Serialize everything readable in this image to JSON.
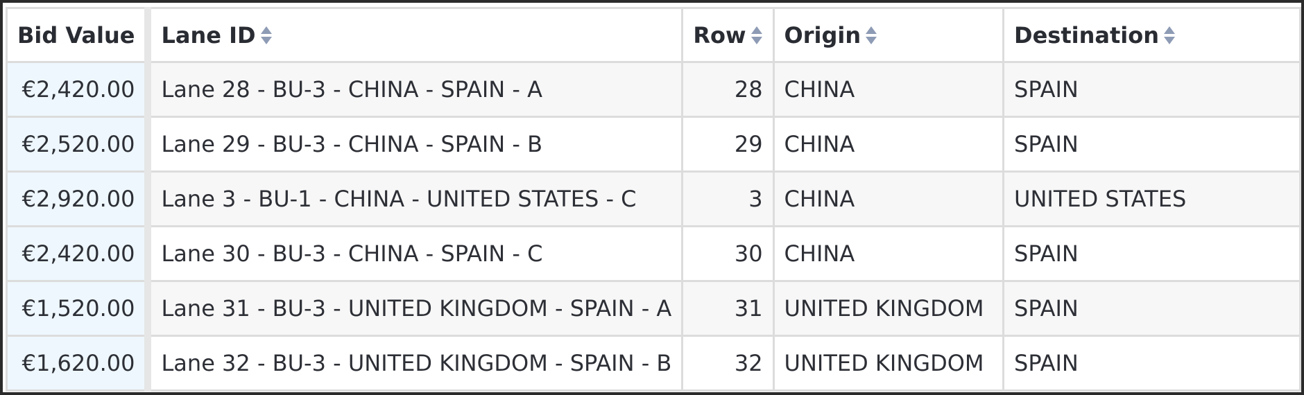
{
  "table": {
    "columns": [
      {
        "label": "Bid Value",
        "sortable": false
      },
      {
        "label": "Lane ID",
        "sortable": true
      },
      {
        "label": "Row",
        "sortable": true
      },
      {
        "label": "Origin",
        "sortable": true
      },
      {
        "label": "Destination",
        "sortable": true
      }
    ],
    "rows": [
      {
        "bid": "€2,420.00",
        "lane": "Lane 28 - BU-3 - CHINA - SPAIN - A",
        "row": "28",
        "origin": "CHINA",
        "destination": "SPAIN"
      },
      {
        "bid": "€2,520.00",
        "lane": "Lane 29 - BU-3 - CHINA - SPAIN - B",
        "row": "29",
        "origin": "CHINA",
        "destination": "SPAIN"
      },
      {
        "bid": "€2,920.00",
        "lane": "Lane 3 - BU-1 - CHINA - UNITED STATES - C",
        "row": "3",
        "origin": "CHINA",
        "destination": "UNITED STATES"
      },
      {
        "bid": "€2,420.00",
        "lane": "Lane 30 - BU-3 - CHINA - SPAIN - C",
        "row": "30",
        "origin": "CHINA",
        "destination": "SPAIN"
      },
      {
        "bid": "€1,520.00",
        "lane": "Lane 31 - BU-3 - UNITED KINGDOM - SPAIN - A",
        "row": "31",
        "origin": "UNITED KINGDOM",
        "destination": "SPAIN"
      },
      {
        "bid": "€1,620.00",
        "lane": "Lane 32 - BU-3 - UNITED KINGDOM - SPAIN - B",
        "row": "32",
        "origin": "UNITED KINGDOM",
        "destination": "SPAIN"
      }
    ]
  },
  "icons": {
    "sort": "sort-icon"
  },
  "colors": {
    "sort_icon": "#8e9bb5",
    "bid_cell_bg": "#eef7fd"
  }
}
